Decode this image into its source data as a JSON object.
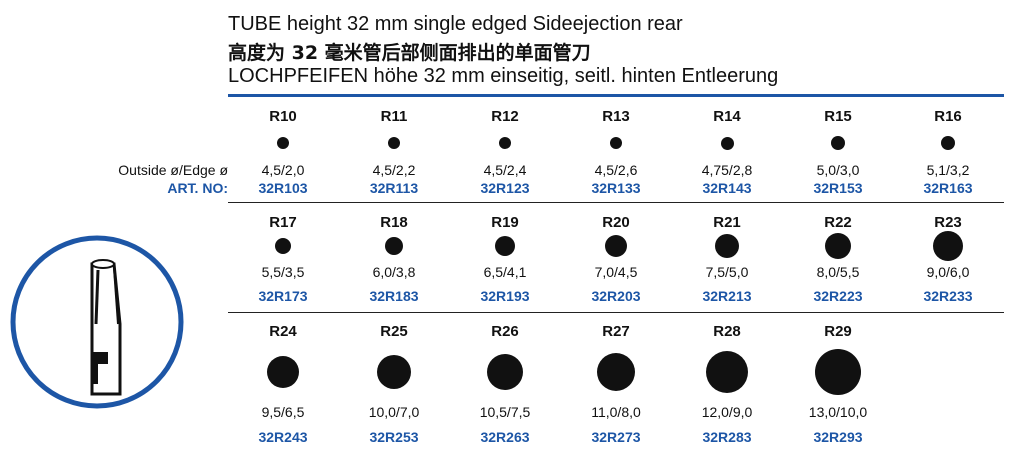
{
  "header": {
    "lines": [
      "TUBE height 32 mm single edged Sideejection rear",
      "高度为 32 毫米管后部侧面排出的单面管刀",
      "LOCHPFEIFEN höhe 32 mm einseitig, seitl. hinten Entleerung"
    ]
  },
  "labels": {
    "size_label": "Outside ø/Edge ø",
    "art_label": "ART. NO:"
  },
  "rows": [
    {
      "items": [
        {
          "code": "R10",
          "size": "4,5/2,0",
          "art": "32R103"
        },
        {
          "code": "R11",
          "size": "4,5/2,2",
          "art": "32R113"
        },
        {
          "code": "R12",
          "size": "4,5/2,4",
          "art": "32R123"
        },
        {
          "code": "R13",
          "size": "4,5/2,6",
          "art": "32R133"
        },
        {
          "code": "R14",
          "size": "4,75/2,8",
          "art": "32R143"
        },
        {
          "code": "R15",
          "size": "5,0/3,0",
          "art": "32R153"
        },
        {
          "code": "R16",
          "size": "5,1/3,2",
          "art": "32R163"
        }
      ]
    },
    {
      "items": [
        {
          "code": "R17",
          "size": "5,5/3,5",
          "art": "32R173"
        },
        {
          "code": "R18",
          "size": "6,0/3,8",
          "art": "32R183"
        },
        {
          "code": "R19",
          "size": "6,5/4,1",
          "art": "32R193"
        },
        {
          "code": "R20",
          "size": "7,0/4,5",
          "art": "32R203"
        },
        {
          "code": "R21",
          "size": "7,5/5,0",
          "art": "32R213"
        },
        {
          "code": "R22",
          "size": "8,0/5,5",
          "art": "32R223"
        },
        {
          "code": "R23",
          "size": "9,0/6,0",
          "art": "32R233"
        }
      ]
    },
    {
      "items": [
        {
          "code": "R24",
          "size": "9,5/6,5",
          "art": "32R243"
        },
        {
          "code": "R25",
          "size": "10,0/7,0",
          "art": "32R253"
        },
        {
          "code": "R26",
          "size": "10,5/7,5",
          "art": "32R263"
        },
        {
          "code": "R27",
          "size": "11,0/8,0",
          "art": "32R273"
        },
        {
          "code": "R28",
          "size": "12,0/9,0",
          "art": "32R283"
        },
        {
          "code": "R29",
          "size": "13,0/10,0",
          "art": "32R293"
        }
      ]
    }
  ]
}
